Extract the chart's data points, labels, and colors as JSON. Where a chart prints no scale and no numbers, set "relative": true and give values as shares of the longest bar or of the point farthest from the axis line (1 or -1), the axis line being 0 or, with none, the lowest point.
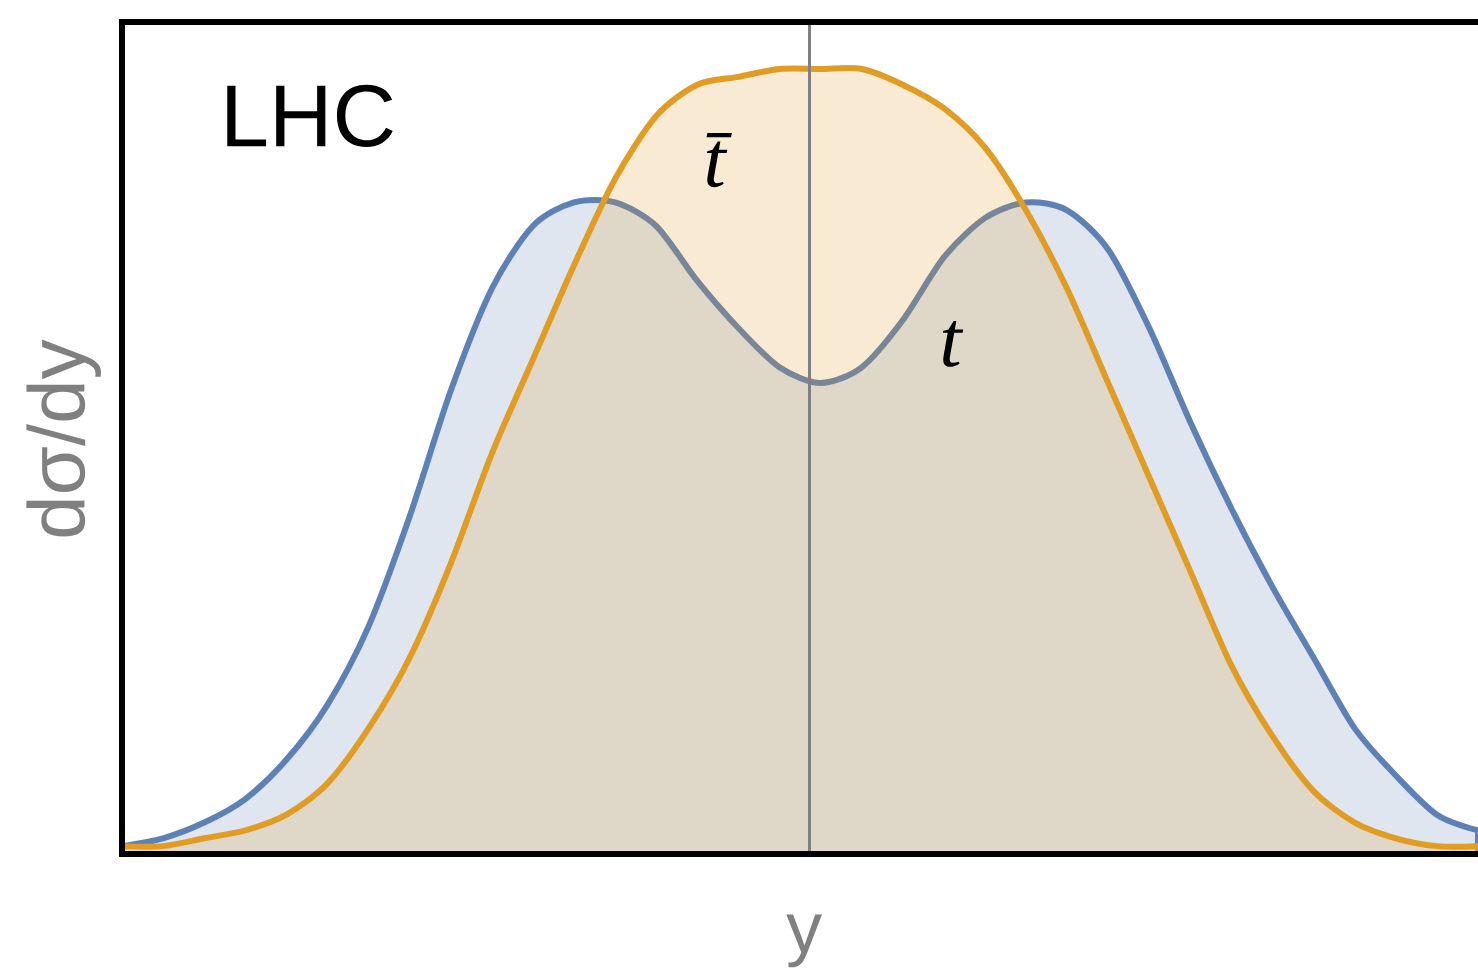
{
  "chart_data": {
    "type": "area",
    "relative": true,
    "xlabel": "y",
    "ylabel": "dσ/dy",
    "annotations": [
      "LHC"
    ],
    "categories": [
      null,
      null,
      null,
      null,
      null,
      null,
      null,
      null,
      null,
      null,
      null,
      null,
      null,
      null,
      null,
      null,
      null,
      null,
      null,
      null,
      null,
      null,
      null,
      null,
      null,
      null,
      null,
      null,
      null,
      null,
      null,
      null,
      null,
      null
    ],
    "series": [
      {
        "name": "t",
        "color": "#5e81b5",
        "values": [
          0.01,
          0.02,
          0.04,
          0.07,
          0.12,
          0.19,
          0.29,
          0.43,
          0.59,
          0.72,
          0.8,
          0.83,
          0.83,
          0.8,
          0.73,
          0.67,
          0.62,
          0.6,
          0.62,
          0.68,
          0.76,
          0.81,
          0.83,
          0.82,
          0.77,
          0.67,
          0.55,
          0.44,
          0.34,
          0.25,
          0.16,
          0.1,
          0.05,
          0.03
        ]
      },
      {
        "name": "t̄",
        "color": "#e19c24",
        "values": [
          0.01,
          0.01,
          0.02,
          0.03,
          0.05,
          0.09,
          0.16,
          0.25,
          0.37,
          0.51,
          0.63,
          0.75,
          0.86,
          0.94,
          0.98,
          0.99,
          1.0,
          1.0,
          1.0,
          0.98,
          0.95,
          0.9,
          0.82,
          0.72,
          0.6,
          0.48,
          0.36,
          0.24,
          0.15,
          0.08,
          0.04,
          0.02,
          0.01,
          0.01
        ]
      }
    ]
  }
}
